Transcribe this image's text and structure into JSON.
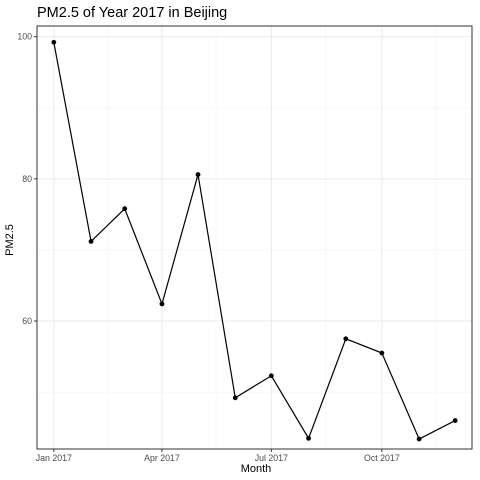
{
  "chart_data": {
    "type": "line",
    "title": "PM2.5 of Year 2017 in Beijing",
    "xlabel": "Month",
    "ylabel": "PM2.5",
    "x": [
      "2017-01",
      "2017-02",
      "2017-03",
      "2017-04",
      "2017-05",
      "2017-06",
      "2017-07",
      "2017-08",
      "2017-09",
      "2017-10",
      "2017-11",
      "2017-12"
    ],
    "values": [
      99.2,
      71.2,
      75.8,
      62.4,
      80.6,
      49.2,
      52.3,
      43.5,
      57.5,
      55.5,
      43.4,
      46.0
    ],
    "x_ticks": [
      {
        "x": "2017-01",
        "label": "Jan 2017"
      },
      {
        "x": "2017-04",
        "label": "Apr 2017"
      },
      {
        "x": "2017-07",
        "label": "Jul 2017"
      },
      {
        "x": "2017-10",
        "label": "Oct 2017"
      }
    ],
    "y_ticks": [
      60,
      80,
      100
    ],
    "ylim": [
      42.0,
      101.5
    ],
    "xlim": [
      "2016-12-18",
      "2017-12-15"
    ],
    "grid": true,
    "legend": "none",
    "colors": {
      "line": "#000000",
      "grid": "#ebebeb",
      "border": "#333333"
    }
  }
}
